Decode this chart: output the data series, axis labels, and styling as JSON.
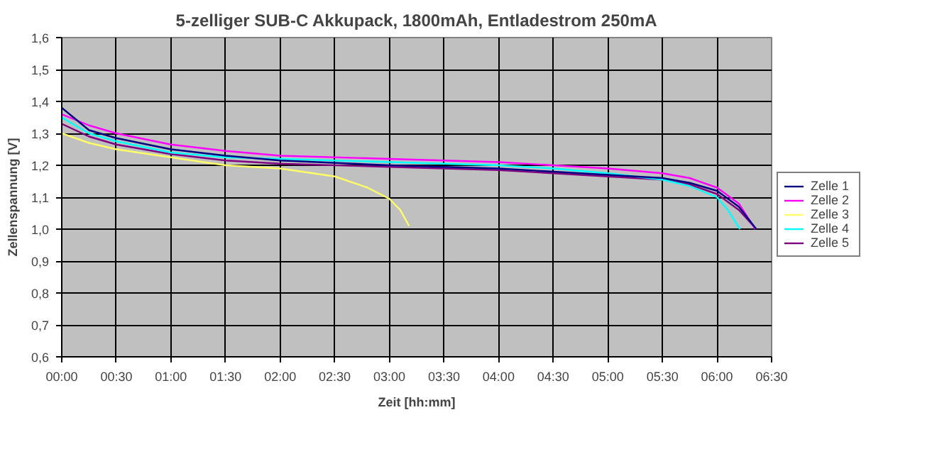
{
  "chart_data": {
    "type": "line",
    "title": "5-zelliger SUB-C Akkupack, 1800mAh, Entladestrom 250mA",
    "xlabel": "Zeit [hh:mm]",
    "ylabel": "Zellenspannung [V]",
    "xlim": [
      0,
      6.5
    ],
    "ylim": [
      0.6,
      1.6
    ],
    "xticks": [
      {
        "value": 0,
        "label": "00:00"
      },
      {
        "value": 0.5,
        "label": "00:30"
      },
      {
        "value": 1,
        "label": "01:00"
      },
      {
        "value": 1.5,
        "label": "01:30"
      },
      {
        "value": 2,
        "label": "02:00"
      },
      {
        "value": 2.5,
        "label": "02:30"
      },
      {
        "value": 3,
        "label": "03:00"
      },
      {
        "value": 3.5,
        "label": "03:30"
      },
      {
        "value": 4,
        "label": "04:00"
      },
      {
        "value": 4.5,
        "label": "04:30"
      },
      {
        "value": 5,
        "label": "05:00"
      },
      {
        "value": 5.5,
        "label": "05:30"
      },
      {
        "value": 6,
        "label": "06:00"
      },
      {
        "value": 6.5,
        "label": "06:30"
      }
    ],
    "yticks": [
      {
        "value": 0.6,
        "label": "0,6"
      },
      {
        "value": 0.7,
        "label": "0,7"
      },
      {
        "value": 0.8,
        "label": "0,8"
      },
      {
        "value": 0.9,
        "label": "0,9"
      },
      {
        "value": 1.0,
        "label": "1,0"
      },
      {
        "value": 1.1,
        "label": "1,1"
      },
      {
        "value": 1.2,
        "label": "1,2"
      },
      {
        "value": 1.3,
        "label": "1,3"
      },
      {
        "value": 1.4,
        "label": "1,4"
      },
      {
        "value": 1.5,
        "label": "1,5"
      },
      {
        "value": 1.6,
        "label": "1,6"
      }
    ],
    "grid": true,
    "legend": "right",
    "marker": "none",
    "line_style": "solid",
    "series": [
      {
        "name": "Zelle 1",
        "color": "#000080",
        "x": [
          0,
          0.25,
          0.5,
          1,
          1.5,
          2,
          3,
          4,
          4.5,
          5,
          5.5,
          5.75,
          6,
          6.2,
          6.36
        ],
        "values": [
          1.38,
          1.31,
          1.285,
          1.25,
          1.23,
          1.215,
          1.2,
          1.19,
          1.18,
          1.17,
          1.16,
          1.145,
          1.12,
          1.07,
          1.0
        ]
      },
      {
        "name": "Zelle 2",
        "color": "#ff00ff",
        "x": [
          0,
          0.25,
          0.5,
          1,
          1.5,
          2,
          3,
          4,
          4.5,
          5,
          5.5,
          5.75,
          6,
          6.2,
          6.35
        ],
        "values": [
          1.36,
          1.325,
          1.3,
          1.265,
          1.245,
          1.23,
          1.22,
          1.21,
          1.2,
          1.19,
          1.175,
          1.16,
          1.13,
          1.08,
          1.0
        ]
      },
      {
        "name": "Zelle 3",
        "color": "#ffff66",
        "x": [
          0,
          0.25,
          0.5,
          1,
          1.5,
          2,
          2.5,
          2.8,
          3,
          3.1,
          3.18
        ],
        "values": [
          1.3,
          1.27,
          1.25,
          1.225,
          1.2,
          1.19,
          1.165,
          1.13,
          1.095,
          1.06,
          1.01
        ]
      },
      {
        "name": "Zelle 4",
        "color": "#00ffff",
        "x": [
          0,
          0.25,
          0.5,
          1,
          1.5,
          2,
          3,
          4,
          4.5,
          5,
          5.5,
          5.75,
          6,
          6.1,
          6.21
        ],
        "values": [
          1.35,
          1.3,
          1.275,
          1.24,
          1.225,
          1.22,
          1.21,
          1.2,
          1.19,
          1.175,
          1.155,
          1.135,
          1.1,
          1.06,
          1.0
        ]
      },
      {
        "name": "Zelle 5",
        "color": "#800080",
        "x": [
          0,
          0.25,
          0.5,
          1,
          1.5,
          2,
          3,
          4,
          4.5,
          5,
          5.5,
          5.75,
          6,
          6.2,
          6.36
        ],
        "values": [
          1.33,
          1.29,
          1.265,
          1.235,
          1.215,
          1.205,
          1.195,
          1.185,
          1.175,
          1.165,
          1.155,
          1.14,
          1.11,
          1.06,
          1.0
        ]
      }
    ]
  }
}
